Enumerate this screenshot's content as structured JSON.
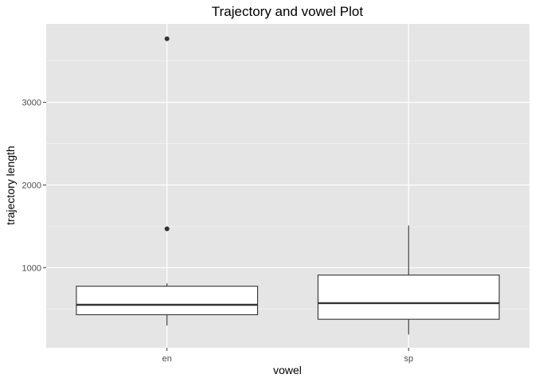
{
  "chart_data": {
    "type": "boxplot",
    "title": "Trajectory and vowel Plot",
    "xlabel": "vowel",
    "ylabel": "trajectory length",
    "categories": [
      "en",
      "sp"
    ],
    "y_ticks": [
      1000,
      2000,
      3000
    ],
    "y_tick_labels": [
      "1000",
      "2000",
      "3000"
    ],
    "ylim": [
      30,
      3950
    ],
    "grid": true,
    "legend": "none",
    "boxes": [
      {
        "category": "en",
        "min": 300,
        "q1": 430,
        "median": 550,
        "q3": 775,
        "max": 810,
        "outliers": [
          1470,
          3770
        ]
      },
      {
        "category": "sp",
        "min": 190,
        "q1": 375,
        "median": 570,
        "q3": 910,
        "max": 1510,
        "outliers": []
      }
    ],
    "colors": {
      "panel": "#e5e5e5",
      "grid_major": "#ffffff",
      "box_fill": "#ffffff",
      "box_stroke": "#333333",
      "tick_text": "#4d4d4d"
    }
  }
}
